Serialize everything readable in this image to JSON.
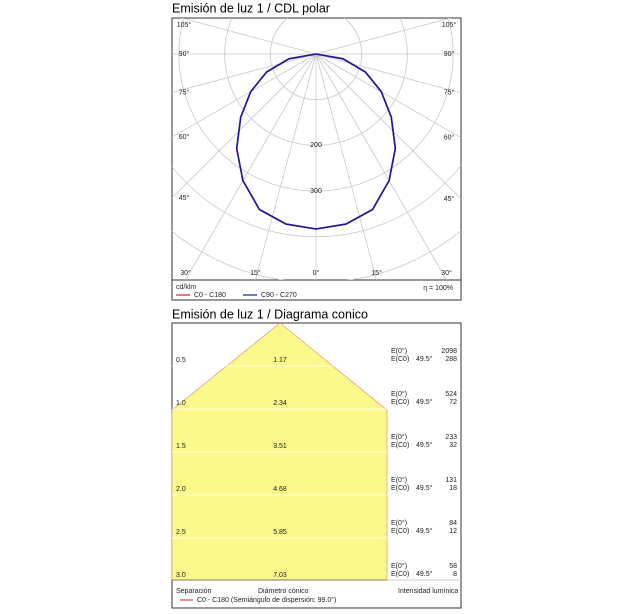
{
  "chart_data": {
    "type": "polar",
    "title": "Emisión de luz 1 / CDL polar",
    "unit": "cd/klm",
    "efficiency": "η = 100%",
    "angles": [
      0,
      10,
      20,
      30,
      40,
      50,
      60,
      70,
      80,
      90
    ],
    "series": [
      {
        "name": "C0 - C180",
        "color": "#e02020",
        "values": [
          383,
          378,
          362,
          320,
          270,
          215,
          165,
          115,
          60,
          0
        ]
      },
      {
        "name": "C90 - C270",
        "color": "#1a1aa8",
        "values": [
          383,
          378,
          362,
          320,
          270,
          215,
          165,
          115,
          60,
          0
        ]
      }
    ],
    "rlim": [
      0,
      500
    ],
    "rgrid": [
      100,
      200,
      300,
      400,
      500
    ],
    "rticks": [
      200,
      300
    ],
    "aticks": [
      {
        "value": -105,
        "label": "105°"
      },
      {
        "value": -90,
        "label": "90°"
      },
      {
        "value": -75,
        "label": "75°"
      },
      {
        "value": -60,
        "label": "60°"
      },
      {
        "value": -45,
        "label": "45°"
      },
      {
        "value": -30,
        "label": "30°"
      },
      {
        "value": -15,
        "label": "15°"
      },
      {
        "value": 0,
        "label": "0°"
      },
      {
        "value": 15,
        "label": "15°"
      },
      {
        "value": 30,
        "label": "30°"
      },
      {
        "value": 45,
        "label": "45°"
      },
      {
        "value": 60,
        "label": "60°"
      },
      {
        "value": 75,
        "label": "75°"
      },
      {
        "value": 90,
        "label": "90°"
      },
      {
        "value": 105,
        "label": "105°"
      }
    ]
  },
  "cone": {
    "title": "Emisión de luz 1 / Diagrama conico",
    "rows": [
      {
        "distance": "0.5",
        "diameter": "1.17",
        "e0_label": "E(0°)",
        "ec0_label": "E(C0)",
        "angle": "49.5°",
        "e0": 2098,
        "ec0": 288
      },
      {
        "distance": "1.0",
        "diameter": "2.34",
        "e0_label": "E(0°)",
        "ec0_label": "E(C0)",
        "angle": "49.5°",
        "e0": 524,
        "ec0": 72
      },
      {
        "distance": "1.5",
        "diameter": "3.51",
        "e0_label": "E(0°)",
        "ec0_label": "E(C0)",
        "angle": "49.5°",
        "e0": 233,
        "ec0": 32
      },
      {
        "distance": "2.0",
        "diameter": "4.68",
        "e0_label": "E(0°)",
        "ec0_label": "E(C0)",
        "angle": "49.5°",
        "e0": 131,
        "ec0": 18
      },
      {
        "distance": "2.5",
        "diameter": "5.85",
        "e0_label": "E(0°)",
        "ec0_label": "E(C0)",
        "angle": "49.5°",
        "e0": 84,
        "ec0": 12
      },
      {
        "distance": "3.0",
        "diameter": "7.03",
        "e0_label": "E(0°)",
        "ec0_label": "E(C0)",
        "angle": "49.5°",
        "e0": 58,
        "ec0": 8
      }
    ],
    "footer": {
      "distance": "Separación",
      "diameter": "Diámetro cónico",
      "intensity": "Intensidad lumínica",
      "legend": "C0 - C180 (Semiángulo de dispersión: 99.0°)"
    }
  }
}
